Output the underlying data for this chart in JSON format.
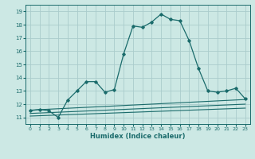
{
  "title": "",
  "xlabel": "Humidex (Indice chaleur)",
  "ylabel": "",
  "bg_color": "#cce8e4",
  "grid_color": "#aacccc",
  "line_color": "#1a6b6b",
  "xlim": [
    -0.5,
    23.5
  ],
  "ylim": [
    10.5,
    19.5
  ],
  "xticks": [
    0,
    1,
    2,
    3,
    4,
    5,
    6,
    7,
    8,
    9,
    10,
    11,
    12,
    13,
    14,
    15,
    16,
    17,
    18,
    19,
    20,
    21,
    22,
    23
  ],
  "yticks": [
    11,
    12,
    13,
    14,
    15,
    16,
    17,
    18,
    19
  ],
  "series_main": [
    [
      0,
      11.5
    ],
    [
      1,
      11.6
    ],
    [
      2,
      11.5
    ],
    [
      3,
      11.0
    ],
    [
      4,
      12.3
    ],
    [
      5,
      13.0
    ],
    [
      6,
      13.7
    ],
    [
      7,
      13.7
    ],
    [
      8,
      12.9
    ],
    [
      9,
      13.1
    ],
    [
      10,
      15.8
    ],
    [
      11,
      17.9
    ],
    [
      12,
      17.8
    ],
    [
      13,
      18.2
    ],
    [
      14,
      18.8
    ],
    [
      15,
      18.4
    ],
    [
      16,
      18.3
    ],
    [
      17,
      16.8
    ],
    [
      18,
      14.7
    ],
    [
      19,
      13.0
    ],
    [
      20,
      12.9
    ],
    [
      21,
      13.0
    ],
    [
      22,
      13.2
    ],
    [
      23,
      12.4
    ]
  ],
  "line_low1": [
    [
      0,
      11.1
    ],
    [
      23,
      11.7
    ]
  ],
  "line_low2": [
    [
      0,
      11.3
    ],
    [
      23,
      12.0
    ]
  ],
  "line_low3": [
    [
      0,
      11.55
    ],
    [
      23,
      12.35
    ]
  ]
}
